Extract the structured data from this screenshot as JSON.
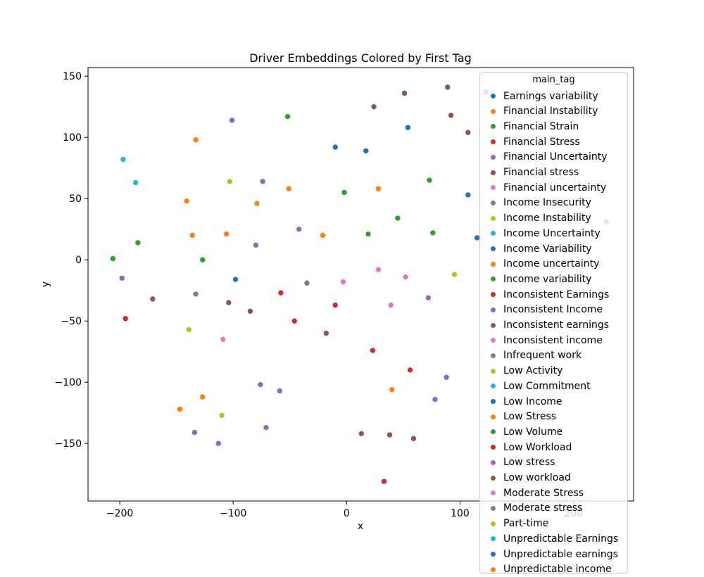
{
  "chart_data": {
    "type": "scatter",
    "title": "Driver Embeddings Colored by First Tag",
    "xlabel": "x",
    "ylabel": "y",
    "xlim": [
      -228,
      253
    ],
    "ylim": [
      -197,
      157
    ],
    "x_ticks": [
      -200,
      -100,
      0,
      100,
      200
    ],
    "y_ticks": [
      -150,
      -100,
      -50,
      0,
      50,
      100,
      150
    ],
    "x_tick_labels": [
      "−200",
      "−100",
      "0",
      "100",
      "200"
    ],
    "y_tick_labels": [
      "−150",
      "−100",
      "−50",
      "0",
      "50",
      "100",
      "150"
    ],
    "grid": false,
    "legend": {
      "title": "main_tag",
      "placement": "right",
      "entries": [
        {
          "label": "Earnings variability",
          "color": "#1f77b4"
        },
        {
          "label": "Financial Instability",
          "color": "#ff7f0e"
        },
        {
          "label": "Financial Strain",
          "color": "#2ca02c"
        },
        {
          "label": "Financial Stress",
          "color": "#d62728"
        },
        {
          "label": "Financial Uncertainty",
          "color": "#9467bd"
        },
        {
          "label": "Financial stress",
          "color": "#8c564b"
        },
        {
          "label": "Financial uncertainty",
          "color": "#e377c2"
        },
        {
          "label": "Income Insecurity",
          "color": "#7f7f7f"
        },
        {
          "label": "Income Instability",
          "color": "#bcbd22"
        },
        {
          "label": "Income Uncertainty",
          "color": "#17becf"
        },
        {
          "label": "Income Variability",
          "color": "#1f77b4"
        },
        {
          "label": "Income uncertainty",
          "color": "#ff7f0e"
        },
        {
          "label": "Income variability",
          "color": "#2ca02c"
        },
        {
          "label": "Inconsistent Earnings",
          "color": "#d62728"
        },
        {
          "label": "Inconsistent Income",
          "color": "#9467bd"
        },
        {
          "label": "Inconsistent earnings",
          "color": "#8c564b"
        },
        {
          "label": "Inconsistent income",
          "color": "#e377c2"
        },
        {
          "label": "Infrequent work",
          "color": "#7f7f7f"
        },
        {
          "label": "Low Activity",
          "color": "#bcbd22"
        },
        {
          "label": "Low Commitment",
          "color": "#17becf"
        },
        {
          "label": "Low Income",
          "color": "#1f77b4"
        },
        {
          "label": "Low Stress",
          "color": "#ff7f0e"
        },
        {
          "label": "Low Volume",
          "color": "#2ca02c"
        },
        {
          "label": "Low Workload",
          "color": "#d62728"
        },
        {
          "label": "Low stress",
          "color": "#9467bd"
        },
        {
          "label": "Low workload",
          "color": "#8c564b"
        },
        {
          "label": "Moderate Stress",
          "color": "#e377c2"
        },
        {
          "label": "Moderate stress",
          "color": "#7f7f7f"
        },
        {
          "label": "Part-time",
          "color": "#bcbd22"
        },
        {
          "label": "Unpredictable Earnings",
          "color": "#17becf"
        },
        {
          "label": "Unpredictable earnings",
          "color": "#1f77b4"
        },
        {
          "label": "Unpredictable income",
          "color": "#ff7f0e"
        }
      ]
    },
    "points": [
      {
        "x": -197,
        "y": 82,
        "color": "#17becf"
      },
      {
        "x": -186,
        "y": 63,
        "color": "#17becf"
      },
      {
        "x": -133,
        "y": 98,
        "color": "#ff7f0e"
      },
      {
        "x": -141,
        "y": 48,
        "color": "#ff7f0e"
      },
      {
        "x": -136,
        "y": 20,
        "color": "#ff7f0e"
      },
      {
        "x": -106,
        "y": 21,
        "color": "#ff7f0e"
      },
      {
        "x": -79,
        "y": 46,
        "color": "#ff7f0e"
      },
      {
        "x": -51,
        "y": 58,
        "color": "#ff7f0e"
      },
      {
        "x": -21,
        "y": 20,
        "color": "#ff7f0e"
      },
      {
        "x": 28,
        "y": 58,
        "color": "#ff7f0e"
      },
      {
        "x": -101,
        "y": 114,
        "color": "#9467bd"
      },
      {
        "x": -74,
        "y": 64,
        "color": "#9467bd"
      },
      {
        "x": -42,
        "y": 25,
        "color": "#9467bd"
      },
      {
        "x": -80,
        "y": 12,
        "color": "#9467bd"
      },
      {
        "x": -198,
        "y": -15,
        "color": "#9467bd"
      },
      {
        "x": -103,
        "y": 64,
        "color": "#bcbd22"
      },
      {
        "x": -52,
        "y": 117,
        "color": "#2ca02c"
      },
      {
        "x": -2,
        "y": 55,
        "color": "#2ca02c"
      },
      {
        "x": -184,
        "y": 14,
        "color": "#2ca02c"
      },
      {
        "x": -206,
        "y": 1,
        "color": "#2ca02c"
      },
      {
        "x": -127,
        "y": 0,
        "color": "#2ca02c"
      },
      {
        "x": 19,
        "y": 21,
        "color": "#2ca02c"
      },
      {
        "x": 45,
        "y": 34,
        "color": "#2ca02c"
      },
      {
        "x": 73,
        "y": 65,
        "color": "#2ca02c"
      },
      {
        "x": 76,
        "y": 22,
        "color": "#2ca02c"
      },
      {
        "x": -10,
        "y": 92,
        "color": "#1f77b4"
      },
      {
        "x": 17,
        "y": 89,
        "color": "#1f77b4"
      },
      {
        "x": 54,
        "y": 108,
        "color": "#1f77b4"
      },
      {
        "x": 107,
        "y": 53,
        "color": "#1f77b4"
      },
      {
        "x": 115,
        "y": 18,
        "color": "#1f77b4"
      },
      {
        "x": -98,
        "y": -16,
        "color": "#1f77b4"
      },
      {
        "x": 24,
        "y": 125,
        "color": "#8c564b"
      },
      {
        "x": 51,
        "y": 136,
        "color": "#8c564b"
      },
      {
        "x": 89,
        "y": 141,
        "color": "#8c564b"
      },
      {
        "x": 92,
        "y": 118,
        "color": "#8c564b"
      },
      {
        "x": 107,
        "y": 104,
        "color": "#8c564b"
      },
      {
        "x": 123,
        "y": 137,
        "color": "#9467bd"
      },
      {
        "x": 229,
        "y": 31,
        "color": "#7f7f7f"
      },
      {
        "x": -133,
        "y": -28,
        "color": "#7f7f7f"
      },
      {
        "x": -35,
        "y": -19,
        "color": "#7f7f7f"
      },
      {
        "x": -171,
        "y": -32,
        "color": "#8c564b"
      },
      {
        "x": -104,
        "y": -35,
        "color": "#8c564b"
      },
      {
        "x": -85,
        "y": -42,
        "color": "#8c564b"
      },
      {
        "x": -18,
        "y": -60,
        "color": "#8c564b"
      },
      {
        "x": 13,
        "y": -142,
        "color": "#8c564b"
      },
      {
        "x": 38,
        "y": -143,
        "color": "#8c564b"
      },
      {
        "x": 59,
        "y": -146,
        "color": "#8c564b"
      },
      {
        "x": -195,
        "y": -48,
        "color": "#d62728"
      },
      {
        "x": -58,
        "y": -27,
        "color": "#d62728"
      },
      {
        "x": -10,
        "y": -37,
        "color": "#d62728"
      },
      {
        "x": -46,
        "y": -50,
        "color": "#d62728"
      },
      {
        "x": 23,
        "y": -74,
        "color": "#d62728"
      },
      {
        "x": 56,
        "y": -90,
        "color": "#d62728"
      },
      {
        "x": 33,
        "y": -181,
        "color": "#d62728"
      },
      {
        "x": -3,
        "y": -18,
        "color": "#e377c2"
      },
      {
        "x": 28,
        "y": -8,
        "color": "#e377c2"
      },
      {
        "x": 52,
        "y": -14,
        "color": "#e377c2"
      },
      {
        "x": 39,
        "y": -37,
        "color": "#e377c2"
      },
      {
        "x": -109,
        "y": -65,
        "color": "#e377c2"
      },
      {
        "x": 72,
        "y": -31,
        "color": "#9467bd"
      },
      {
        "x": 95,
        "y": -12,
        "color": "#bcbd22"
      },
      {
        "x": -139,
        "y": -57,
        "color": "#bcbd22"
      },
      {
        "x": -110,
        "y": -127,
        "color": "#bcbd22"
      },
      {
        "x": 40,
        "y": -106,
        "color": "#ff7f0e"
      },
      {
        "x": -127,
        "y": -112,
        "color": "#ff7f0e"
      },
      {
        "x": -147,
        "y": -122,
        "color": "#ff7f0e"
      },
      {
        "x": 88,
        "y": -96,
        "color": "#9467bd"
      },
      {
        "x": 78,
        "y": -114,
        "color": "#9467bd"
      },
      {
        "x": -76,
        "y": -102,
        "color": "#9467bd"
      },
      {
        "x": -59,
        "y": -107,
        "color": "#9467bd"
      },
      {
        "x": -134,
        "y": -141,
        "color": "#9467bd"
      },
      {
        "x": -71,
        "y": -137,
        "color": "#9467bd"
      },
      {
        "x": -113,
        "y": -150,
        "color": "#9467bd"
      }
    ]
  }
}
